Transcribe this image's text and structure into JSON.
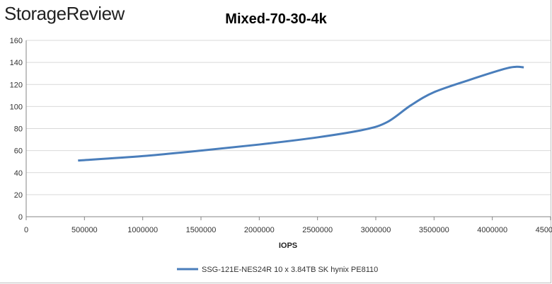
{
  "brand": "StorageReview",
  "chart_data": {
    "type": "line",
    "title": "Mixed-70-30-4k",
    "xlabel": "IOPS",
    "ylabel": "",
    "xlim": [
      0,
      4500000
    ],
    "ylim": [
      0,
      160
    ],
    "x_ticks": [
      "0",
      "500000",
      "1000000",
      "1500000",
      "2000000",
      "2500000",
      "3000000",
      "3500000",
      "4000000",
      "4500000"
    ],
    "y_ticks": [
      "0",
      "20",
      "40",
      "60",
      "80",
      "100",
      "120",
      "140",
      "160"
    ],
    "grid": "horizontal",
    "legend": "bottom",
    "series": [
      {
        "name": "SSG-121E-NES24R 10 x 3.84TB SK hynix PE8110",
        "color": "#4a7ebb",
        "x": [
          445000,
          1000000,
          1500000,
          2000000,
          2500000,
          2900000,
          3100000,
          3300000,
          3500000,
          3800000,
          4100000,
          4200000,
          4270000
        ],
        "y": [
          51,
          55,
          60,
          65.5,
          72,
          79,
          86,
          101,
          113,
          124,
          134,
          136,
          135.5
        ]
      }
    ]
  }
}
